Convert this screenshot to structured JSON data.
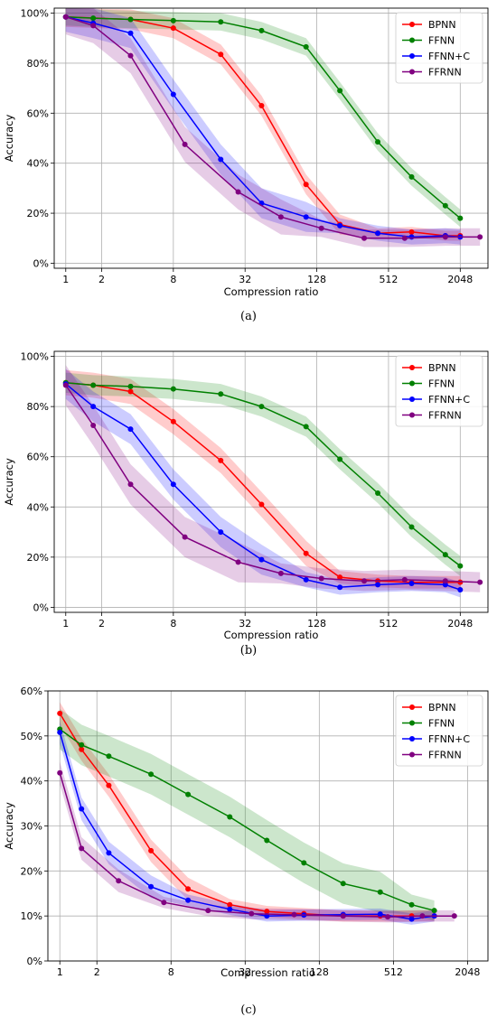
{
  "captions": [
    "(a)",
    "(b)",
    "(c)"
  ],
  "chart_data": [
    {
      "type": "line",
      "title": "",
      "xlabel": "Compression ratio",
      "ylabel": "Accuracy",
      "xscale": "log2",
      "xticks": [
        1,
        2,
        8,
        32,
        128,
        512,
        2048
      ],
      "xtick_labels": [
        "1",
        "2",
        "8",
        "32",
        "128",
        "512",
        "2048"
      ],
      "yticks": [
        0,
        0.2,
        0.4,
        0.6,
        0.8,
        1.0
      ],
      "ytick_labels": [
        "0%",
        "20%",
        "40%",
        "60%",
        "80%",
        "100%"
      ],
      "xlim": [
        0.8,
        3500
      ],
      "ylim": [
        -0.02,
        1.02
      ],
      "grid": true,
      "legend": "top-right",
      "series": [
        {
          "name": "BPNN",
          "color": "#ff0000",
          "x": [
            1,
            3.5,
            8,
            20,
            44,
            104,
            200,
            416,
            800,
            1536,
            2048
          ],
          "y": [
            0.985,
            0.975,
            0.94,
            0.835,
            0.63,
            0.315,
            0.155,
            0.12,
            0.125,
            0.11,
            0.11
          ],
          "band": 0.04
        },
        {
          "name": "FFNN",
          "color": "#008000",
          "x": [
            1,
            1.7,
            3.5,
            8,
            20,
            44,
            104,
            200,
            416,
            800,
            1536,
            2048
          ],
          "y": [
            0.985,
            0.98,
            0.975,
            0.97,
            0.965,
            0.93,
            0.865,
            0.69,
            0.485,
            0.345,
            0.23,
            0.18
          ],
          "band": 0.035
        },
        {
          "name": "FFNN+C",
          "color": "#0000ff",
          "x": [
            1,
            1.7,
            3.5,
            8,
            20,
            44,
            104,
            200,
            416,
            800,
            1536,
            2048
          ],
          "y": [
            0.985,
            0.96,
            0.92,
            0.675,
            0.415,
            0.24,
            0.185,
            0.15,
            0.12,
            0.105,
            0.11,
            0.105
          ],
          "band": 0.06
        },
        {
          "name": "FFRNN",
          "color": "#800080",
          "x": [
            1,
            1.7,
            3.5,
            10,
            28,
            64,
            140,
            320,
            700,
            1536,
            3000
          ],
          "y": [
            0.985,
            0.95,
            0.83,
            0.475,
            0.285,
            0.185,
            0.14,
            0.1,
            0.1,
            0.105,
            0.105
          ],
          "band": 0.07
        }
      ]
    },
    {
      "type": "line",
      "title": "",
      "xlabel": "Compression ratio",
      "ylabel": "Accuracy",
      "xscale": "log2",
      "xticks": [
        1,
        2,
        8,
        32,
        128,
        512,
        2048
      ],
      "xtick_labels": [
        "1",
        "2",
        "8",
        "32",
        "128",
        "512",
        "2048"
      ],
      "yticks": [
        0,
        0.2,
        0.4,
        0.6,
        0.8,
        1.0
      ],
      "ytick_labels": [
        "0%",
        "20%",
        "40%",
        "60%",
        "80%",
        "100%"
      ],
      "xlim": [
        0.8,
        3500
      ],
      "ylim": [
        -0.02,
        1.02
      ],
      "grid": true,
      "legend": "top-right",
      "series": [
        {
          "name": "BPNN",
          "color": "#ff0000",
          "x": [
            1,
            1.7,
            3.5,
            8,
            20,
            44,
            104,
            200,
            416,
            800,
            1536,
            2048
          ],
          "y": [
            0.895,
            0.885,
            0.86,
            0.74,
            0.585,
            0.41,
            0.215,
            0.12,
            0.105,
            0.1,
            0.1,
            0.1
          ],
          "band": 0.05
        },
        {
          "name": "FFNN",
          "color": "#008000",
          "x": [
            1,
            1.7,
            3.5,
            8,
            20,
            44,
            104,
            200,
            416,
            800,
            1536,
            2048
          ],
          "y": [
            0.895,
            0.885,
            0.88,
            0.87,
            0.85,
            0.8,
            0.72,
            0.59,
            0.455,
            0.32,
            0.21,
            0.165
          ],
          "band": 0.04
        },
        {
          "name": "FFNN+C",
          "color": "#0000ff",
          "x": [
            1,
            1.7,
            3.5,
            8,
            20,
            44,
            104,
            200,
            416,
            800,
            1536,
            2048
          ],
          "y": [
            0.89,
            0.8,
            0.71,
            0.49,
            0.3,
            0.19,
            0.11,
            0.08,
            0.09,
            0.095,
            0.09,
            0.07
          ],
          "band": 0.06
        },
        {
          "name": "FFRNN",
          "color": "#800080",
          "x": [
            1,
            1.7,
            3.5,
            10,
            28,
            64,
            140,
            320,
            700,
            1536,
            3000
          ],
          "y": [
            0.885,
            0.725,
            0.49,
            0.28,
            0.18,
            0.135,
            0.115,
            0.105,
            0.11,
            0.105,
            0.1
          ],
          "band": 0.08
        }
      ]
    },
    {
      "type": "line",
      "title": "",
      "xlabel": "Compression ratio",
      "ylabel": "Accuracy",
      "xscale": "log2",
      "xticks": [
        1,
        2,
        8,
        32,
        128,
        512,
        2048
      ],
      "xtick_labels": [
        "1",
        "2",
        "8",
        "32",
        "128",
        "512",
        "2048"
      ],
      "yticks": [
        0,
        0.1,
        0.2,
        0.3,
        0.4,
        0.5,
        0.6
      ],
      "ytick_labels": [
        "0%",
        "10%",
        "20%",
        "30%",
        "40%",
        "50%",
        "60%"
      ],
      "xlim": [
        0.8,
        3000
      ],
      "ylim": [
        0,
        0.6
      ],
      "grid": true,
      "legend": "top-right",
      "series": [
        {
          "name": "BPNN",
          "color": "#ff0000",
          "x": [
            1,
            1.5,
            2.5,
            5.5,
            11,
            24,
            48,
            96,
            200,
            400,
            720,
            1100
          ],
          "y": [
            0.55,
            0.47,
            0.39,
            0.245,
            0.16,
            0.125,
            0.11,
            0.105,
            0.1,
            0.1,
            0.1,
            0.1
          ],
          "band": 0.025
        },
        {
          "name": "FFNN",
          "color": "#008000",
          "x": [
            1,
            1.5,
            2.5,
            5.5,
            11,
            24,
            48,
            96,
            200,
            400,
            720,
            1100
          ],
          "y": [
            0.515,
            0.48,
            0.455,
            0.415,
            0.37,
            0.32,
            0.268,
            0.218,
            0.172,
            0.153,
            0.125,
            0.112
          ],
          "band": 0.045
        },
        {
          "name": "FFNN+C",
          "color": "#0000ff",
          "x": [
            1,
            1.5,
            2.5,
            5.5,
            11,
            24,
            48,
            96,
            200,
            400,
            720,
            1100
          ],
          "y": [
            0.508,
            0.338,
            0.24,
            0.165,
            0.135,
            0.115,
            0.1,
            0.102,
            0.103,
            0.104,
            0.093,
            0.1
          ],
          "band": 0.025
        },
        {
          "name": "FFRNN",
          "color": "#800080",
          "x": [
            1,
            1.5,
            3,
            7,
            16,
            36,
            80,
            200,
            460,
            880,
            1600
          ],
          "y": [
            0.418,
            0.25,
            0.178,
            0.13,
            0.112,
            0.105,
            0.103,
            0.1,
            0.098,
            0.1,
            0.1
          ],
          "band": 0.025
        }
      ]
    }
  ]
}
